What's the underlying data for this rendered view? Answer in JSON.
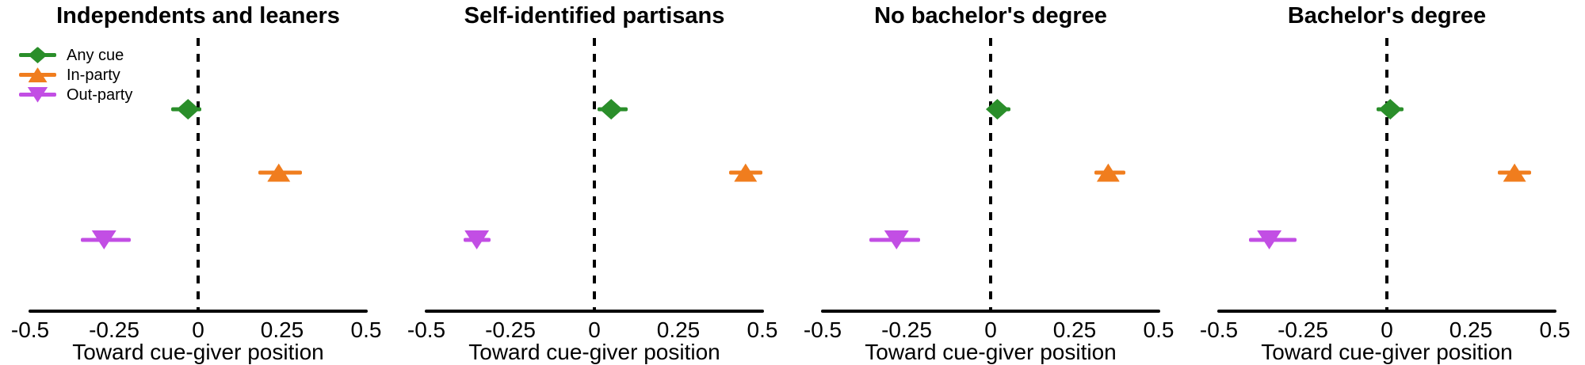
{
  "legend": {
    "items": [
      {
        "name": "any-cue",
        "label": "Any cue",
        "marker": "diamond",
        "color": "#2A8E2A"
      },
      {
        "name": "in-party",
        "label": "In-party",
        "marker": "triangle-up",
        "color": "#F07D1E"
      },
      {
        "name": "out-party",
        "label": "Out-party",
        "marker": "triangle-down",
        "color": "#C24EE4"
      }
    ]
  },
  "axis": {
    "xlim": [
      -0.5,
      0.5
    ],
    "ticks": [
      "-0.5",
      "-0.25",
      "0",
      "0.25",
      "0.5"
    ],
    "xlabel": "Toward cue-giver position",
    "zero_reference_line": true
  },
  "chart_data": [
    {
      "type": "scatter",
      "title": "Independents and leaners",
      "xlabel": "Toward cue-giver position",
      "xlim": [
        -0.5,
        0.5
      ],
      "series": [
        {
          "name": "Any cue",
          "estimate": -0.03,
          "ci_low": -0.08,
          "ci_high": 0.01
        },
        {
          "name": "In-party",
          "estimate": 0.24,
          "ci_low": 0.18,
          "ci_high": 0.31
        },
        {
          "name": "Out-party",
          "estimate": -0.28,
          "ci_low": -0.35,
          "ci_high": -0.2
        }
      ]
    },
    {
      "type": "scatter",
      "title": "Self-identified partisans",
      "xlabel": "Toward cue-giver position",
      "xlim": [
        -0.5,
        0.5
      ],
      "series": [
        {
          "name": "Any cue",
          "estimate": 0.05,
          "ci_low": 0.01,
          "ci_high": 0.1
        },
        {
          "name": "In-party",
          "estimate": 0.45,
          "ci_low": 0.4,
          "ci_high": 0.5
        },
        {
          "name": "Out-party",
          "estimate": -0.35,
          "ci_low": -0.39,
          "ci_high": -0.31
        }
      ]
    },
    {
      "type": "scatter",
      "title": "No bachelor's degree",
      "xlabel": "Toward cue-giver position",
      "xlim": [
        -0.5,
        0.5
      ],
      "series": [
        {
          "name": "Any cue",
          "estimate": 0.02,
          "ci_low": -0.01,
          "ci_high": 0.06
        },
        {
          "name": "In-party",
          "estimate": 0.35,
          "ci_low": 0.31,
          "ci_high": 0.4
        },
        {
          "name": "Out-party",
          "estimate": -0.28,
          "ci_low": -0.36,
          "ci_high": -0.21
        }
      ]
    },
    {
      "type": "scatter",
      "title": "Bachelor's degree",
      "xlabel": "Toward cue-giver position",
      "xlim": [
        -0.5,
        0.5
      ],
      "series": [
        {
          "name": "Any cue",
          "estimate": 0.01,
          "ci_low": -0.03,
          "ci_high": 0.05
        },
        {
          "name": "In-party",
          "estimate": 0.38,
          "ci_low": 0.33,
          "ci_high": 0.43
        },
        {
          "name": "Out-party",
          "estimate": -0.35,
          "ci_low": -0.41,
          "ci_high": -0.27
        }
      ]
    }
  ]
}
